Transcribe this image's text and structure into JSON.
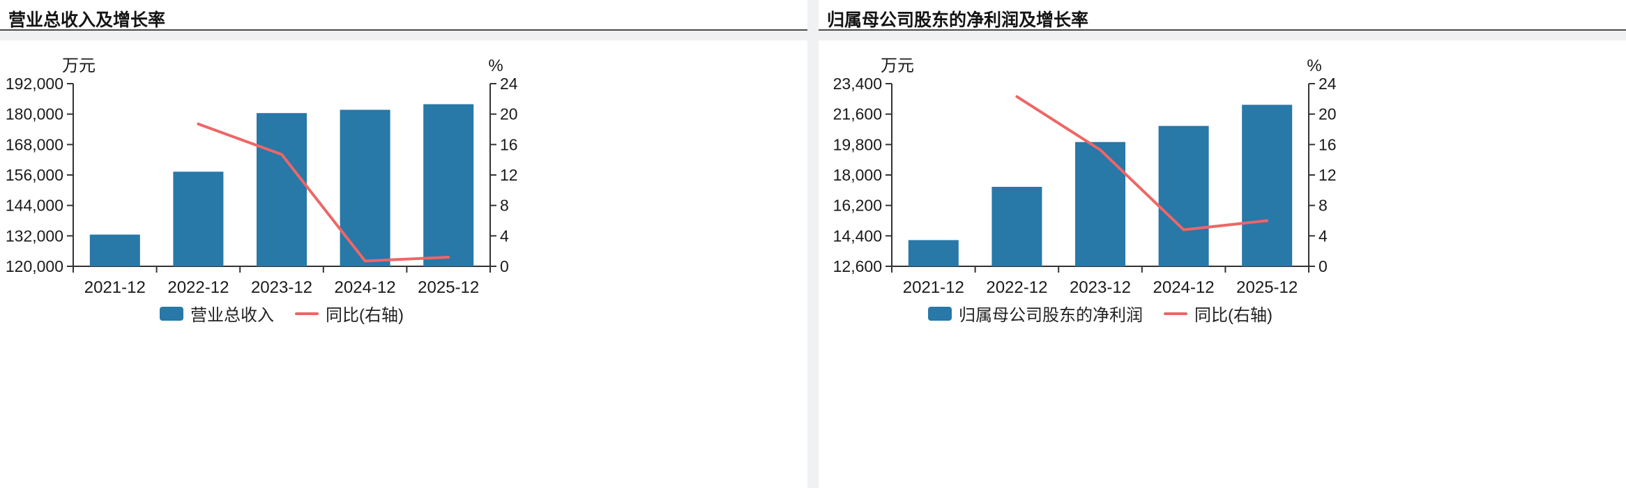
{
  "panels": [
    {
      "title": "营业总收入及增长率"
    },
    {
      "title": "归属母公司股东的净利润及增长率"
    }
  ],
  "chart_data": [
    {
      "type": "bar+line",
      "title": "营业总收入及增长率",
      "categories": [
        "2021-12",
        "2022-12",
        "2023-12",
        "2024-12",
        "2025-12"
      ],
      "series": [
        {
          "name": "营业总收入",
          "type": "bar",
          "axis": "left",
          "values": [
            132500,
            157300,
            180400,
            181700,
            183900
          ]
        },
        {
          "name": "同比(右轴)",
          "type": "line",
          "axis": "right",
          "values": [
            null,
            18.7,
            14.7,
            0.7,
            1.2
          ]
        }
      ],
      "left_axis": {
        "unit": "万元",
        "min": 120000,
        "max": 192000,
        "tick_labels": [
          "120,000",
          "132,000",
          "144,000",
          "156,000",
          "168,000",
          "180,000",
          "192,000"
        ]
      },
      "right_axis": {
        "unit": "%",
        "min": 0,
        "max": 24,
        "tick_labels": [
          "0",
          "4",
          "8",
          "12",
          "16",
          "20",
          "24"
        ]
      },
      "colors": {
        "bar": "#2878a8",
        "line": "#ee6666",
        "axis": "#333333",
        "text": "#1a1a1a"
      },
      "legend": [
        "营业总收入",
        "同比(右轴)"
      ],
      "grid": false,
      "legend_position": "bottom"
    },
    {
      "type": "bar+line",
      "title": "归属母公司股东的净利润及增长率",
      "categories": [
        "2021-12",
        "2022-12",
        "2023-12",
        "2024-12",
        "2025-12"
      ],
      "series": [
        {
          "name": "归属母公司股东的净利润",
          "type": "bar",
          "axis": "left",
          "values": [
            14150,
            17300,
            19950,
            20900,
            22150
          ]
        },
        {
          "name": "同比(右轴)",
          "type": "line",
          "axis": "right",
          "values": [
            null,
            22.3,
            15.3,
            4.8,
            6.0
          ]
        }
      ],
      "left_axis": {
        "unit": "万元",
        "min": 12600,
        "max": 23400,
        "tick_labels": [
          "12,600",
          "14,400",
          "16,200",
          "18,000",
          "19,800",
          "21,600",
          "23,400"
        ]
      },
      "right_axis": {
        "unit": "%",
        "min": 0,
        "max": 24,
        "tick_labels": [
          "0",
          "4",
          "8",
          "12",
          "16",
          "20",
          "24"
        ]
      },
      "colors": {
        "bar": "#2878a8",
        "line": "#ee6666",
        "axis": "#333333",
        "text": "#1a1a1a"
      },
      "legend": [
        "归属母公司股东的净利润",
        "同比(右轴)"
      ],
      "grid": false,
      "legend_position": "bottom"
    }
  ]
}
